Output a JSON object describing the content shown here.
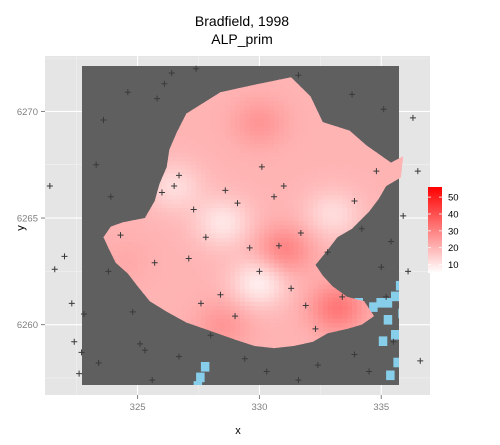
{
  "chart_data": {
    "type": "heatmap",
    "title": "Bradfield, 1998",
    "subtitle": "ALP_prim",
    "xlabel": "x",
    "ylabel": "y",
    "xlim": [
      321.2,
      337.0
    ],
    "ylim": [
      6256.7,
      6272.6
    ],
    "x_ticks": [
      325,
      330,
      335
    ],
    "y_ticks": [
      6260,
      6265,
      6270
    ],
    "grid": true,
    "legend": {
      "placement": "right",
      "ticks": [
        10,
        20,
        30,
        40,
        50
      ],
      "range": [
        5,
        56
      ],
      "color_low": "#ffffff",
      "color_high": "#ff0000"
    },
    "background_color": "#5f5f5f",
    "panel_background": "#e5e5e5",
    "water_color": "#87ceeb",
    "region_outline": [
      [
        327.0,
        6269.9
      ],
      [
        328.4,
        6270.9
      ],
      [
        330.0,
        6271.3
      ],
      [
        331.3,
        6271.6
      ],
      [
        332.1,
        6270.7
      ],
      [
        332.6,
        6269.5
      ],
      [
        333.7,
        6269.1
      ],
      [
        334.4,
        6268.4
      ],
      [
        335.4,
        6267.6
      ],
      [
        335.9,
        6267.9
      ],
      [
        335.8,
        6266.9
      ],
      [
        335.2,
        6266.5
      ],
      [
        334.9,
        6265.9
      ],
      [
        334.5,
        6265.3
      ],
      [
        333.8,
        6264.5
      ],
      [
        333.2,
        6264.1
      ],
      [
        332.8,
        6263.5
      ],
      [
        332.3,
        6262.8
      ],
      [
        332.6,
        6262.3
      ],
      [
        333.0,
        6261.8
      ],
      [
        333.6,
        6261.3
      ],
      [
        334.3,
        6261.1
      ],
      [
        334.7,
        6260.4
      ],
      [
        334.2,
        6260.0
      ],
      [
        333.6,
        6259.8
      ],
      [
        332.8,
        6259.6
      ],
      [
        332.2,
        6259.2
      ],
      [
        331.4,
        6259.0
      ],
      [
        330.6,
        6258.9
      ],
      [
        329.8,
        6259.0
      ],
      [
        329.0,
        6259.3
      ],
      [
        328.0,
        6259.7
      ],
      [
        327.0,
        6260.1
      ],
      [
        326.2,
        6260.6
      ],
      [
        325.5,
        6261.1
      ],
      [
        325.0,
        6261.8
      ],
      [
        324.6,
        6262.4
      ],
      [
        324.1,
        6262.9
      ],
      [
        323.8,
        6263.6
      ],
      [
        323.6,
        6264.1
      ],
      [
        323.9,
        6264.6
      ],
      [
        324.4,
        6264.8
      ],
      [
        325.3,
        6265.0
      ],
      [
        325.7,
        6265.8
      ],
      [
        325.9,
        6266.6
      ],
      [
        326.2,
        6267.4
      ],
      [
        326.3,
        6268.2
      ],
      [
        326.6,
        6269.0
      ]
    ],
    "value_hotspots": [
      {
        "x": 331.0,
        "y": 6263.5,
        "value": 30
      },
      {
        "x": 330.0,
        "y": 6262.0,
        "value": 8
      },
      {
        "x": 328.5,
        "y": 6264.8,
        "value": 10
      },
      {
        "x": 326.5,
        "y": 6266.5,
        "value": 12
      },
      {
        "x": 333.0,
        "y": 6265.2,
        "value": 12
      },
      {
        "x": 330.0,
        "y": 6269.5,
        "value": 26
      },
      {
        "x": 333.2,
        "y": 6260.8,
        "value": 32
      },
      {
        "x": 328.5,
        "y": 6260.0,
        "value": 26
      },
      {
        "x": 324.5,
        "y": 6263.0,
        "value": 22
      }
    ],
    "value_base": 20,
    "sample_points": [
      [
        321.4,
        6266.5
      ],
      [
        322.0,
        6263.2
      ],
      [
        322.3,
        6261.0
      ],
      [
        322.4,
        6259.2
      ],
      [
        322.8,
        6260.5
      ],
      [
        322.6,
        6257.7
      ],
      [
        323.4,
        6258.2
      ],
      [
        323.3,
        6267.5
      ],
      [
        323.6,
        6269.6
      ],
      [
        323.9,
        6266.0
      ],
      [
        324.3,
        6264.2
      ],
      [
        324.8,
        6260.6
      ],
      [
        325.1,
        6259.1
      ],
      [
        325.6,
        6257.4
      ],
      [
        325.7,
        6262.9
      ],
      [
        324.6,
        6270.9
      ],
      [
        325.8,
        6270.6
      ],
      [
        326.4,
        6271.8
      ],
      [
        326.1,
        6271.3
      ],
      [
        327.4,
        6272.0
      ],
      [
        326.0,
        6266.2
      ],
      [
        326.5,
        6266.5
      ],
      [
        326.7,
        6267.0
      ],
      [
        327.1,
        6263.1
      ],
      [
        327.3,
        6265.4
      ],
      [
        327.8,
        6264.1
      ],
      [
        328.0,
        6259.5
      ],
      [
        328.4,
        6261.4
      ],
      [
        328.6,
        6266.3
      ],
      [
        329.0,
        6260.4
      ],
      [
        329.6,
        6263.6
      ],
      [
        330.0,
        6262.5
      ],
      [
        330.1,
        6267.4
      ],
      [
        330.6,
        6266.0
      ],
      [
        330.8,
        6263.7
      ],
      [
        331.0,
        6266.5
      ],
      [
        331.3,
        6261.7
      ],
      [
        331.7,
        6264.3
      ],
      [
        332.3,
        6259.8
      ],
      [
        332.8,
        6263.4
      ],
      [
        333.4,
        6261.3
      ],
      [
        333.9,
        6265.8
      ],
      [
        334.2,
        6264.5
      ],
      [
        334.8,
        6267.2
      ],
      [
        335.2,
        6261.3
      ],
      [
        335.0,
        6262.7
      ],
      [
        335.4,
        6263.9
      ],
      [
        335.9,
        6265.1
      ],
      [
        336.1,
        6262.5
      ],
      [
        336.5,
        6267.2
      ],
      [
        335.1,
        6270.1
      ],
      [
        336.3,
        6269.7
      ],
      [
        333.8,
        6270.8
      ],
      [
        331.6,
        6271.7
      ],
      [
        329.4,
        6258.4
      ],
      [
        330.3,
        6257.8
      ],
      [
        331.6,
        6257.4
      ],
      [
        332.4,
        6258.1
      ],
      [
        333.9,
        6258.6
      ],
      [
        334.5,
        6257.8
      ],
      [
        335.5,
        6259.2
      ],
      [
        336.6,
        6258.3
      ],
      [
        326.7,
        6258.5
      ],
      [
        325.3,
        6258.8
      ],
      [
        323.8,
        6262.5
      ],
      [
        322.7,
        6258.7
      ],
      [
        321.6,
        6262.6
      ],
      [
        327.6,
        6261.0
      ],
      [
        329.1,
        6265.7
      ],
      [
        331.9,
        6260.9
      ]
    ]
  }
}
